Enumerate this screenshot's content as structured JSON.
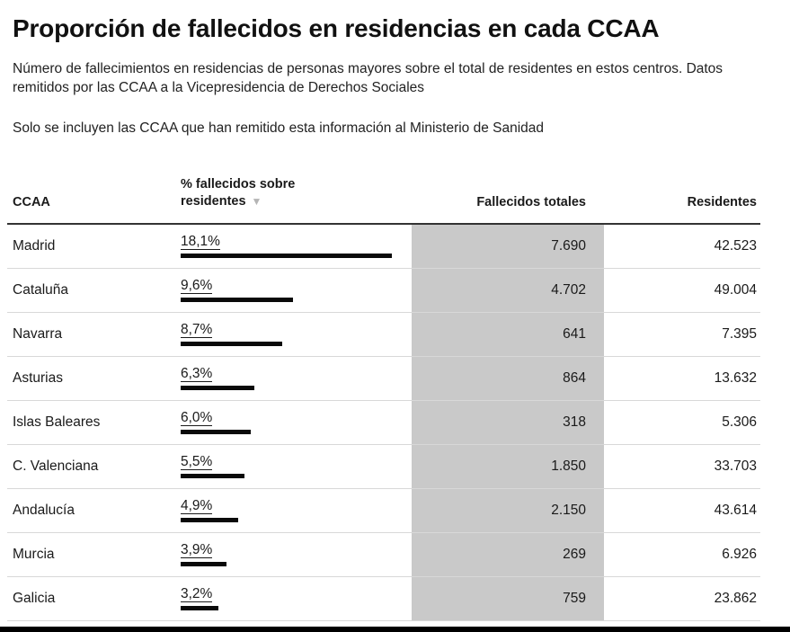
{
  "title": "Proporción de fallecidos en residencias en cada CCAA",
  "subtitle": "Número de fallecimientos en residencias de personas mayores sobre el total de residentes en estos centros. Datos remitidos por las CCAA a la Vicepresidencia de Derechos Sociales",
  "note": "Solo se incluyen las CCAA que han remitido esta información al Ministerio de Sanidad",
  "columns": {
    "ccaa": "CCAA",
    "pct": "% fallecidos sobre residentes",
    "sort_icon": "▼",
    "total": "Fallecidos totales",
    "residents": "Residentes"
  },
  "colors": {
    "bar": "#0a0a0a",
    "highlight_column": "#c9c9c9"
  },
  "chart_data": {
    "type": "table",
    "title": "Proporción de fallecidos en residencias en cada CCAA",
    "sorted_by": "% fallecidos sobre residentes",
    "sort_order": "descending",
    "bar_max_value": 18.1,
    "rows": [
      {
        "ccaa": "Madrid",
        "pct_label": "18,1%",
        "pct": 18.1,
        "total_label": "7.690",
        "total": 7690,
        "residents_label": "42.523",
        "residents": 42523
      },
      {
        "ccaa": "Cataluña",
        "pct_label": "9,6%",
        "pct": 9.6,
        "total_label": "4.702",
        "total": 4702,
        "residents_label": "49.004",
        "residents": 49004
      },
      {
        "ccaa": "Navarra",
        "pct_label": "8,7%",
        "pct": 8.7,
        "total_label": "641",
        "total": 641,
        "residents_label": "7.395",
        "residents": 7395
      },
      {
        "ccaa": "Asturias",
        "pct_label": "6,3%",
        "pct": 6.3,
        "total_label": "864",
        "total": 864,
        "residents_label": "13.632",
        "residents": 13632
      },
      {
        "ccaa": "Islas Baleares",
        "pct_label": "6,0%",
        "pct": 6.0,
        "total_label": "318",
        "total": 318,
        "residents_label": "5.306",
        "residents": 5306
      },
      {
        "ccaa": "C. Valenciana",
        "pct_label": "5,5%",
        "pct": 5.5,
        "total_label": "1.850",
        "total": 1850,
        "residents_label": "33.703",
        "residents": 33703
      },
      {
        "ccaa": "Andalucía",
        "pct_label": "4,9%",
        "pct": 4.9,
        "total_label": "2.150",
        "total": 2150,
        "residents_label": "43.614",
        "residents": 43614
      },
      {
        "ccaa": "Murcia",
        "pct_label": "3,9%",
        "pct": 3.9,
        "total_label": "269",
        "total": 269,
        "residents_label": "6.926",
        "residents": 6926
      },
      {
        "ccaa": "Galicia",
        "pct_label": "3,2%",
        "pct": 3.2,
        "total_label": "759",
        "total": 759,
        "residents_label": "23.862",
        "residents": 23862
      }
    ]
  }
}
